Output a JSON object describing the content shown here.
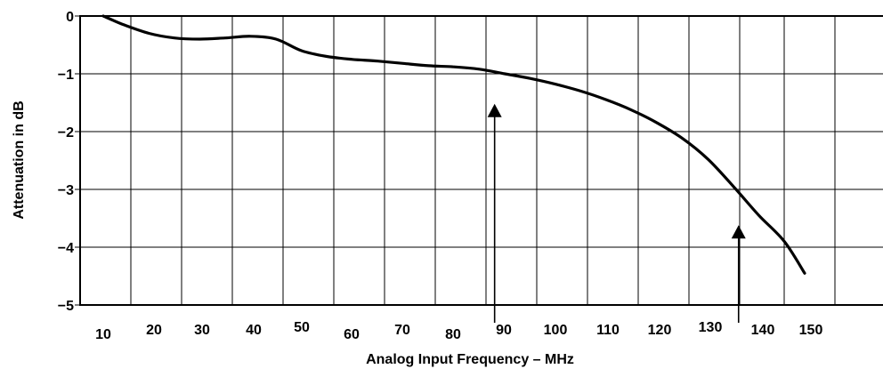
{
  "chart_data": {
    "type": "line",
    "xlabel": "Analog Input Frequency – MHz",
    "ylabel": "Attenuation in dB",
    "ylim": [
      -5,
      0
    ],
    "grid": true,
    "x_ticks": [
      {
        "label": "10",
        "value": 10
      },
      {
        "label": "20",
        "value": 20
      },
      {
        "label": "30",
        "value": 30
      },
      {
        "label": "40",
        "value": 40
      },
      {
        "label": "50",
        "value": 50
      },
      {
        "label": "60",
        "value": 60
      },
      {
        "label": "70",
        "value": 70
      },
      {
        "label": "80",
        "value": 80
      },
      {
        "label": "90",
        "value": 90
      },
      {
        "label": "100",
        "value": 100
      },
      {
        "label": "110",
        "value": 110
      },
      {
        "label": "120",
        "value": 120
      },
      {
        "label": "130",
        "value": 130
      },
      {
        "label": "140",
        "value": 140
      },
      {
        "label": "150",
        "value": 150
      }
    ],
    "y_ticks": [
      {
        "label": "0",
        "value": 0
      },
      {
        "label": "−1",
        "value": -1
      },
      {
        "label": "−2",
        "value": -2
      },
      {
        "label": "−3",
        "value": -3
      },
      {
        "label": "−4",
        "value": -4
      },
      {
        "label": "−5",
        "value": -5
      }
    ],
    "series": [
      {
        "x": [
          11,
          15,
          20,
          25,
          30,
          35,
          40,
          45,
          50,
          55,
          60,
          65,
          70,
          75,
          80,
          85,
          90,
          95,
          100,
          105,
          110,
          115,
          120,
          125,
          130,
          135,
          140,
          145,
          149
        ],
        "values": [
          0,
          -0.15,
          -0.3,
          -0.38,
          -0.4,
          -0.38,
          -0.35,
          -0.4,
          -0.6,
          -0.7,
          -0.75,
          -0.78,
          -0.82,
          -0.86,
          -0.88,
          -0.92,
          -1.0,
          -1.08,
          -1.18,
          -1.3,
          -1.45,
          -1.63,
          -1.85,
          -2.12,
          -2.48,
          -2.95,
          -3.45,
          -3.9,
          -4.45
        ]
      }
    ],
    "annotations": [
      {
        "type": "arrow-up",
        "x": 88,
        "y_from": -5,
        "y_to": -1.55
      },
      {
        "type": "arrow-up",
        "x": 136,
        "y_from": -5,
        "y_to": -3.65
      }
    ]
  }
}
